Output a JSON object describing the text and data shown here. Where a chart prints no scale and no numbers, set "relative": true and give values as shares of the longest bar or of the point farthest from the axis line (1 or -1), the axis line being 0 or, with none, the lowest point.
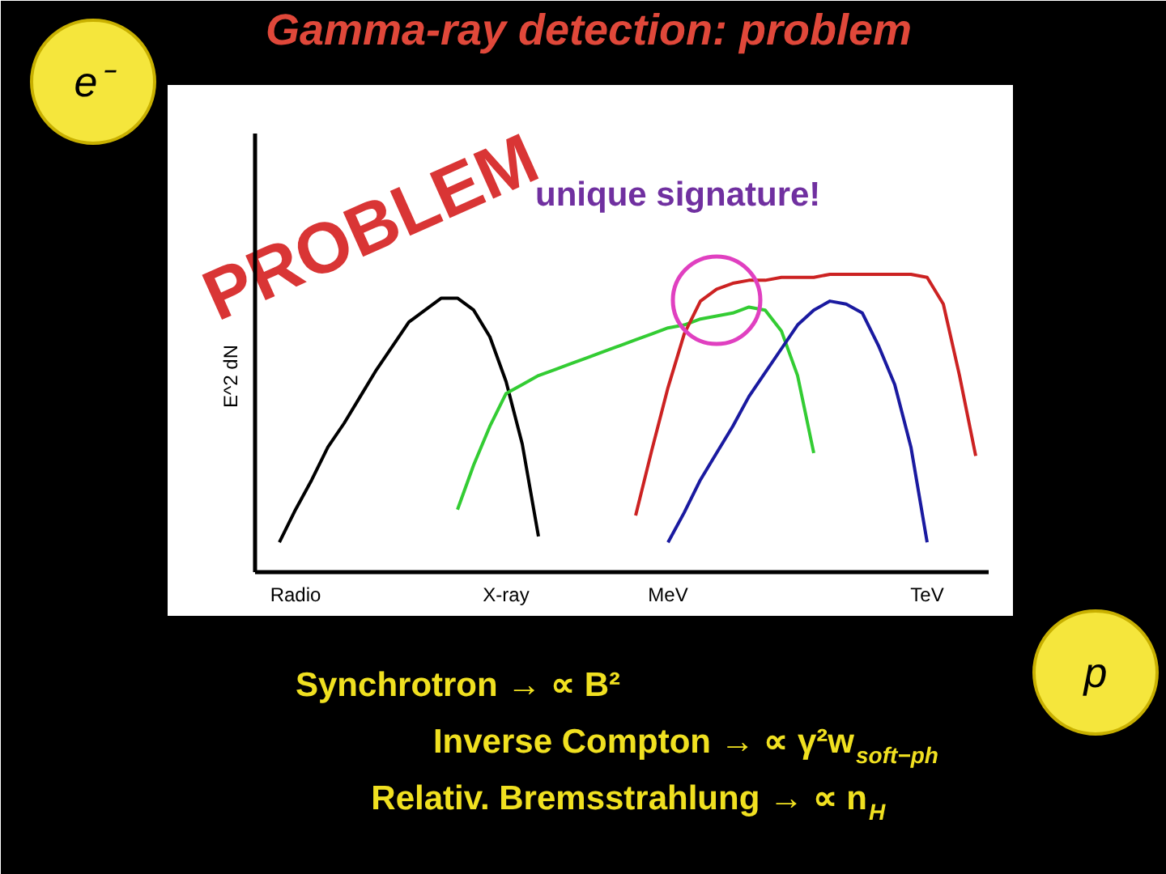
{
  "chart_data": {
    "type": "line",
    "title": "Gamma-ray detection: problem",
    "ylabel": "E^2 dN",
    "relative": true,
    "categories": [
      null,
      null,
      "Radio",
      null,
      null,
      null,
      null,
      null,
      null,
      null,
      null,
      null,
      null,
      null,
      null,
      "X-ray",
      null,
      null,
      null,
      null,
      null,
      null,
      null,
      null,
      null,
      "MeV",
      null,
      null,
      null,
      null,
      null,
      null,
      null,
      null,
      null,
      null,
      null,
      null,
      null,
      null,
      null,
      "TeV",
      null,
      null,
      null
    ],
    "series": [
      {
        "color": "#000000",
        "values": [
          null,
          0.1,
          0.21,
          0.31,
          0.42,
          0.5,
          0.59,
          0.68,
          0.76,
          0.84,
          0.88,
          0.92,
          0.92,
          0.88,
          0.79,
          0.64,
          0.43,
          0.12,
          null,
          null,
          null,
          null,
          null,
          null,
          null,
          null,
          null,
          null,
          null,
          null,
          null,
          null,
          null,
          null,
          null,
          null,
          null,
          null,
          null,
          null,
          null,
          null,
          null,
          null,
          null
        ]
      },
      {
        "color": "#33cc33",
        "values": [
          null,
          null,
          null,
          null,
          null,
          null,
          null,
          null,
          null,
          null,
          null,
          null,
          0.21,
          0.36,
          0.49,
          0.6,
          0.63,
          0.66,
          0.68,
          0.7,
          0.72,
          0.74,
          0.76,
          0.78,
          0.8,
          0.82,
          0.83,
          0.85,
          0.86,
          0.87,
          0.89,
          0.88,
          0.81,
          0.66,
          0.4,
          null,
          null,
          null,
          null,
          null,
          null,
          null,
          null,
          null,
          null
        ]
      },
      {
        "color": "#cc2222",
        "values": [
          null,
          null,
          null,
          null,
          null,
          null,
          null,
          null,
          null,
          null,
          null,
          null,
          null,
          null,
          null,
          null,
          null,
          null,
          null,
          null,
          null,
          null,
          null,
          0.19,
          0.41,
          0.62,
          0.8,
          0.91,
          0.95,
          0.97,
          0.98,
          0.98,
          0.99,
          0.99,
          0.99,
          1.0,
          1.0,
          1.0,
          1.0,
          1.0,
          1.0,
          0.99,
          0.9,
          0.66,
          0.39
        ]
      },
      {
        "color": "#1a1aa0",
        "values": [
          null,
          null,
          null,
          null,
          null,
          null,
          null,
          null,
          null,
          null,
          null,
          null,
          null,
          null,
          null,
          null,
          null,
          null,
          null,
          null,
          null,
          null,
          null,
          null,
          null,
          0.1,
          0.2,
          0.31,
          0.4,
          0.49,
          0.59,
          0.67,
          0.75,
          0.83,
          0.88,
          0.91,
          0.9,
          0.87,
          0.76,
          0.63,
          0.42,
          0.1,
          null,
          null,
          null
        ]
      }
    ],
    "annotations": [
      "PROBLEM",
      "unique signature!",
      "e⁻",
      "p",
      "Synchrotron → ∝ B²",
      "Inverse Compton → ∝ γ²w$_{soft−ph}$",
      "Relativ. Bremsstrahlung → ∝ n$_{H}$"
    ]
  }
}
